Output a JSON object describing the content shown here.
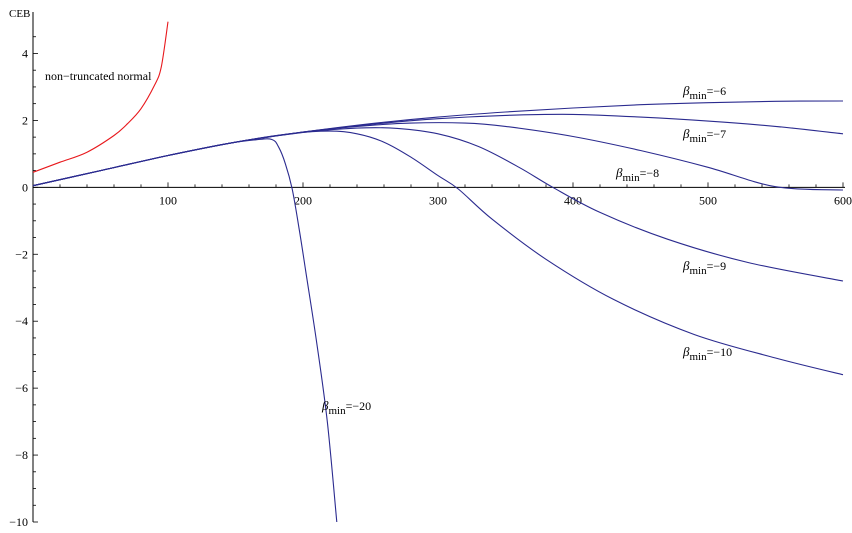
{
  "chart_data": {
    "type": "line",
    "ylabel": "CEB",
    "xlim": [
      0,
      600
    ],
    "ylim": [
      -10,
      5
    ],
    "x_ticks": [
      "100",
      "200",
      "300",
      "400",
      "500",
      "600"
    ],
    "y_ticks": [
      "4",
      "2",
      "0",
      "−2",
      "−4",
      "−6",
      "−8",
      "−10"
    ],
    "grid": false,
    "series": [
      {
        "name": "non−truncated normal",
        "color": "#e8181c",
        "points": [
          [
            0,
            0.45
          ],
          [
            20,
            0.75
          ],
          [
            40,
            1.05
          ],
          [
            60,
            1.55
          ],
          [
            70,
            1.9
          ],
          [
            80,
            2.35
          ],
          [
            90,
            3.05
          ],
          [
            95,
            3.6
          ],
          [
            100,
            4.95
          ]
        ]
      },
      {
        "label_main": "β",
        "label_sub": "min",
        "label_value": "=−6",
        "color": "#2b2b8f",
        "points": [
          [
            0,
            0.05
          ],
          [
            50,
            0.5
          ],
          [
            100,
            0.95
          ],
          [
            150,
            1.35
          ],
          [
            200,
            1.65
          ],
          [
            250,
            1.9
          ],
          [
            300,
            2.1
          ],
          [
            350,
            2.25
          ],
          [
            400,
            2.37
          ],
          [
            450,
            2.47
          ],
          [
            500,
            2.53
          ],
          [
            550,
            2.57
          ],
          [
            600,
            2.58
          ]
        ]
      },
      {
        "label_main": "β",
        "label_sub": "min",
        "label_value": "=−7",
        "color": "#2b2b8f",
        "points": [
          [
            0,
            0.05
          ],
          [
            50,
            0.5
          ],
          [
            100,
            0.95
          ],
          [
            150,
            1.35
          ],
          [
            200,
            1.65
          ],
          [
            250,
            1.88
          ],
          [
            300,
            2.05
          ],
          [
            350,
            2.15
          ],
          [
            400,
            2.18
          ],
          [
            450,
            2.1
          ],
          [
            500,
            1.98
          ],
          [
            550,
            1.82
          ],
          [
            600,
            1.6
          ]
        ]
      },
      {
        "label_main": "β",
        "label_sub": "min",
        "label_value": "=−8",
        "color": "#2b2b8f",
        "points": [
          [
            0,
            0.05
          ],
          [
            50,
            0.5
          ],
          [
            100,
            0.95
          ],
          [
            150,
            1.35
          ],
          [
            200,
            1.65
          ],
          [
            240,
            1.82
          ],
          [
            280,
            1.92
          ],
          [
            320,
            1.92
          ],
          [
            350,
            1.82
          ],
          [
            400,
            1.52
          ],
          [
            450,
            1.1
          ],
          [
            500,
            0.6
          ],
          [
            550,
            0.02
          ],
          [
            600,
            -0.08
          ]
        ]
      },
      {
        "label_main": "β",
        "label_sub": "min",
        "label_value": "=−9",
        "color": "#2b2b8f",
        "points": [
          [
            0,
            0.05
          ],
          [
            50,
            0.5
          ],
          [
            100,
            0.95
          ],
          [
            150,
            1.35
          ],
          [
            200,
            1.64
          ],
          [
            240,
            1.77
          ],
          [
            270,
            1.76
          ],
          [
            300,
            1.6
          ],
          [
            330,
            1.22
          ],
          [
            360,
            0.6
          ],
          [
            385,
            0.0
          ],
          [
            420,
            -0.75
          ],
          [
            470,
            -1.55
          ],
          [
            530,
            -2.25
          ],
          [
            600,
            -2.8
          ]
        ]
      },
      {
        "label_main": "β",
        "label_sub": "min",
        "label_value": "=−10",
        "color": "#2b2b8f",
        "points": [
          [
            0,
            0.05
          ],
          [
            50,
            0.5
          ],
          [
            100,
            0.95
          ],
          [
            150,
            1.35
          ],
          [
            190,
            1.6
          ],
          [
            220,
            1.68
          ],
          [
            240,
            1.6
          ],
          [
            260,
            1.35
          ],
          [
            280,
            0.9
          ],
          [
            300,
            0.35
          ],
          [
            315,
            -0.05
          ],
          [
            340,
            -0.95
          ],
          [
            380,
            -2.15
          ],
          [
            430,
            -3.35
          ],
          [
            490,
            -4.4
          ],
          [
            550,
            -5.1
          ],
          [
            600,
            -5.6
          ]
        ]
      },
      {
        "label_main": "β",
        "label_sub": "min",
        "label_value": "=−20",
        "color": "#2b2b8f",
        "points": [
          [
            0,
            0.05
          ],
          [
            50,
            0.5
          ],
          [
            100,
            0.95
          ],
          [
            140,
            1.28
          ],
          [
            165,
            1.42
          ],
          [
            177,
            1.43
          ],
          [
            182,
            1.2
          ],
          [
            187,
            0.7
          ],
          [
            192,
            -0.05
          ],
          [
            197,
            -1.2
          ],
          [
            202,
            -2.5
          ],
          [
            210,
            -4.6
          ],
          [
            218,
            -7.0
          ],
          [
            225,
            -10.0
          ]
        ]
      }
    ]
  }
}
